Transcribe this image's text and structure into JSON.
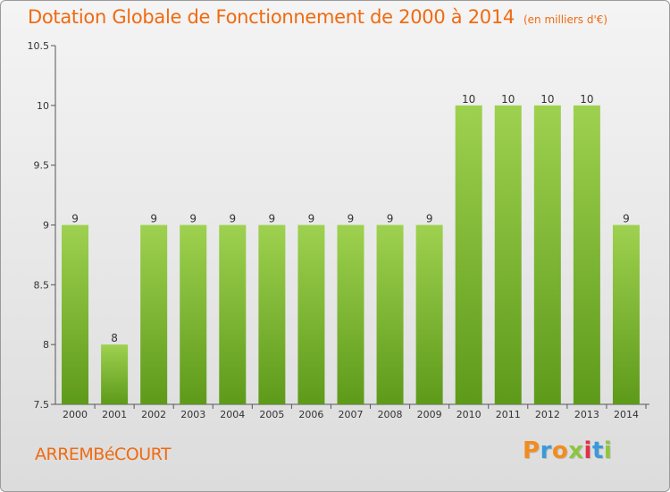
{
  "chart_data": {
    "type": "bar",
    "title": "Dotation Globale de Fonctionnement de 2000 à 2014",
    "subtitle": "(en milliers d'€)",
    "categories": [
      "2000",
      "2001",
      "2002",
      "2003",
      "2004",
      "2005",
      "2006",
      "2007",
      "2008",
      "2009",
      "2010",
      "2011",
      "2012",
      "2013",
      "2014"
    ],
    "values": [
      9,
      8,
      9,
      9,
      9,
      9,
      9,
      9,
      9,
      9,
      10,
      10,
      10,
      10,
      9
    ],
    "data_labels": [
      "9",
      "8",
      "9",
      "9",
      "9",
      "9",
      "9",
      "9",
      "9",
      "9",
      "10",
      "10",
      "10",
      "10",
      "9"
    ],
    "ylim": [
      7.5,
      10.5
    ],
    "yticks": [
      7.5,
      8,
      8.5,
      9,
      9.5,
      10,
      10.5
    ],
    "ytick_labels": [
      "7.5",
      "8",
      "8.5",
      "9",
      "9.5",
      "10",
      "10.5"
    ],
    "xlabel": "",
    "ylabel": "",
    "grid": false,
    "bar_color": "#8cc63f",
    "bar_color_dark": "#5e9a1a"
  },
  "footer": {
    "commune": "ARREMBéCOURT",
    "logo_letters": [
      "P",
      "r",
      "o",
      "x",
      "i",
      "t",
      "i"
    ],
    "logo_colors": [
      "#f28c1f",
      "#3a9ad9",
      "#f28c1f",
      "#8cc63f",
      "#e2304a",
      "#3a9ad9",
      "#8cc63f"
    ]
  }
}
